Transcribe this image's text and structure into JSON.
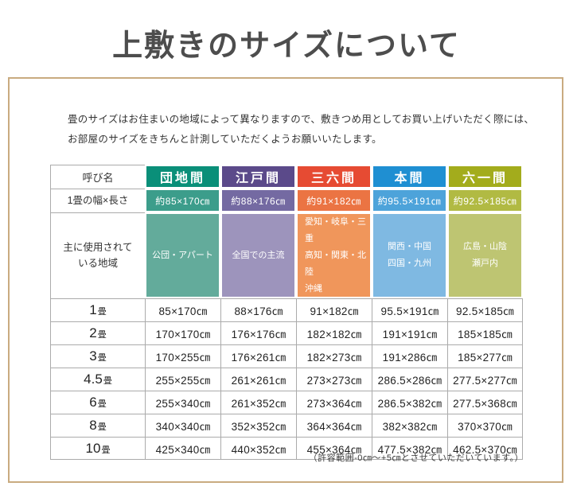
{
  "title": "上敷きのサイズについて",
  "intro": {
    "line1": "畳のサイズはお住まいの地域によって異なりますので、敷きつめ用としてお買い上げいただく際には、",
    "line2": "お部屋のサイズをきちんと計測していただくようお願いいたします。"
  },
  "table": {
    "corner_label": "呼び名",
    "width_row_label": "1畳の幅×長さ",
    "region_row_label": "主に使用されて\nいる地域",
    "columns": [
      {
        "name": "団地間",
        "header_color": "#0a8f79",
        "size_color": "#3c9d8b",
        "region_color": "#63ab9b",
        "size": "約85×170㎝",
        "region": "公団・アパート"
      },
      {
        "name": "江戸間",
        "header_color": "#5b4a8a",
        "size_color": "#746aa2",
        "region_color": "#9d94bc",
        "size": "約88×176㎝",
        "region": "全国での主流"
      },
      {
        "name": "三六間",
        "header_color": "#e64b33",
        "size_color": "#eb7443",
        "region_color": "#f0965b",
        "size": "約91×182㎝",
        "region": "愛知・岐阜・三重\n高知・関東・北陸\n沖縄"
      },
      {
        "name": "本間",
        "header_color": "#1f8fd2",
        "size_color": "#4da3da",
        "region_color": "#7fb9e2",
        "size": "約95.5×191㎝",
        "region": "関西・中国\n四国・九州"
      },
      {
        "name": "六一間",
        "header_color": "#a3ac1c",
        "size_color": "#b1ba43",
        "region_color": "#bec572",
        "size": "約92.5×185㎝",
        "region": "広島・山陰\n瀬戸内"
      }
    ],
    "rows": [
      {
        "label_num": "1",
        "label_unit": "畳",
        "values": [
          "85×170㎝",
          "88×176㎝",
          "91×182㎝",
          "95.5×191㎝",
          "92.5×185㎝"
        ]
      },
      {
        "label_num": "2",
        "label_unit": "畳",
        "values": [
          "170×170㎝",
          "176×176㎝",
          "182×182㎝",
          "191×191㎝",
          "185×185㎝"
        ]
      },
      {
        "label_num": "3",
        "label_unit": "畳",
        "values": [
          "170×255㎝",
          "176×261㎝",
          "182×273㎝",
          "191×286㎝",
          "185×277㎝"
        ]
      },
      {
        "label_num": "4.5",
        "label_unit": "畳",
        "values": [
          "255×255㎝",
          "261×261㎝",
          "273×273㎝",
          "286.5×286㎝",
          "277.5×277㎝"
        ]
      },
      {
        "label_num": "6",
        "label_unit": "畳",
        "values": [
          "255×340㎝",
          "261×352㎝",
          "273×364㎝",
          "286.5×382㎝",
          "277.5×368㎝"
        ]
      },
      {
        "label_num": "8",
        "label_unit": "畳",
        "values": [
          "340×340㎝",
          "352×352㎝",
          "364×364㎝",
          "382×382㎝",
          "370×370㎝"
        ]
      },
      {
        "label_num": "10",
        "label_unit": "畳",
        "values": [
          "425×340㎝",
          "440×352㎝",
          "455×364㎝",
          "477.5×382㎝",
          "462.5×370㎝"
        ]
      }
    ]
  },
  "footnote": "（許容範囲-0㎝～+5㎝とさせていただいています。）"
}
